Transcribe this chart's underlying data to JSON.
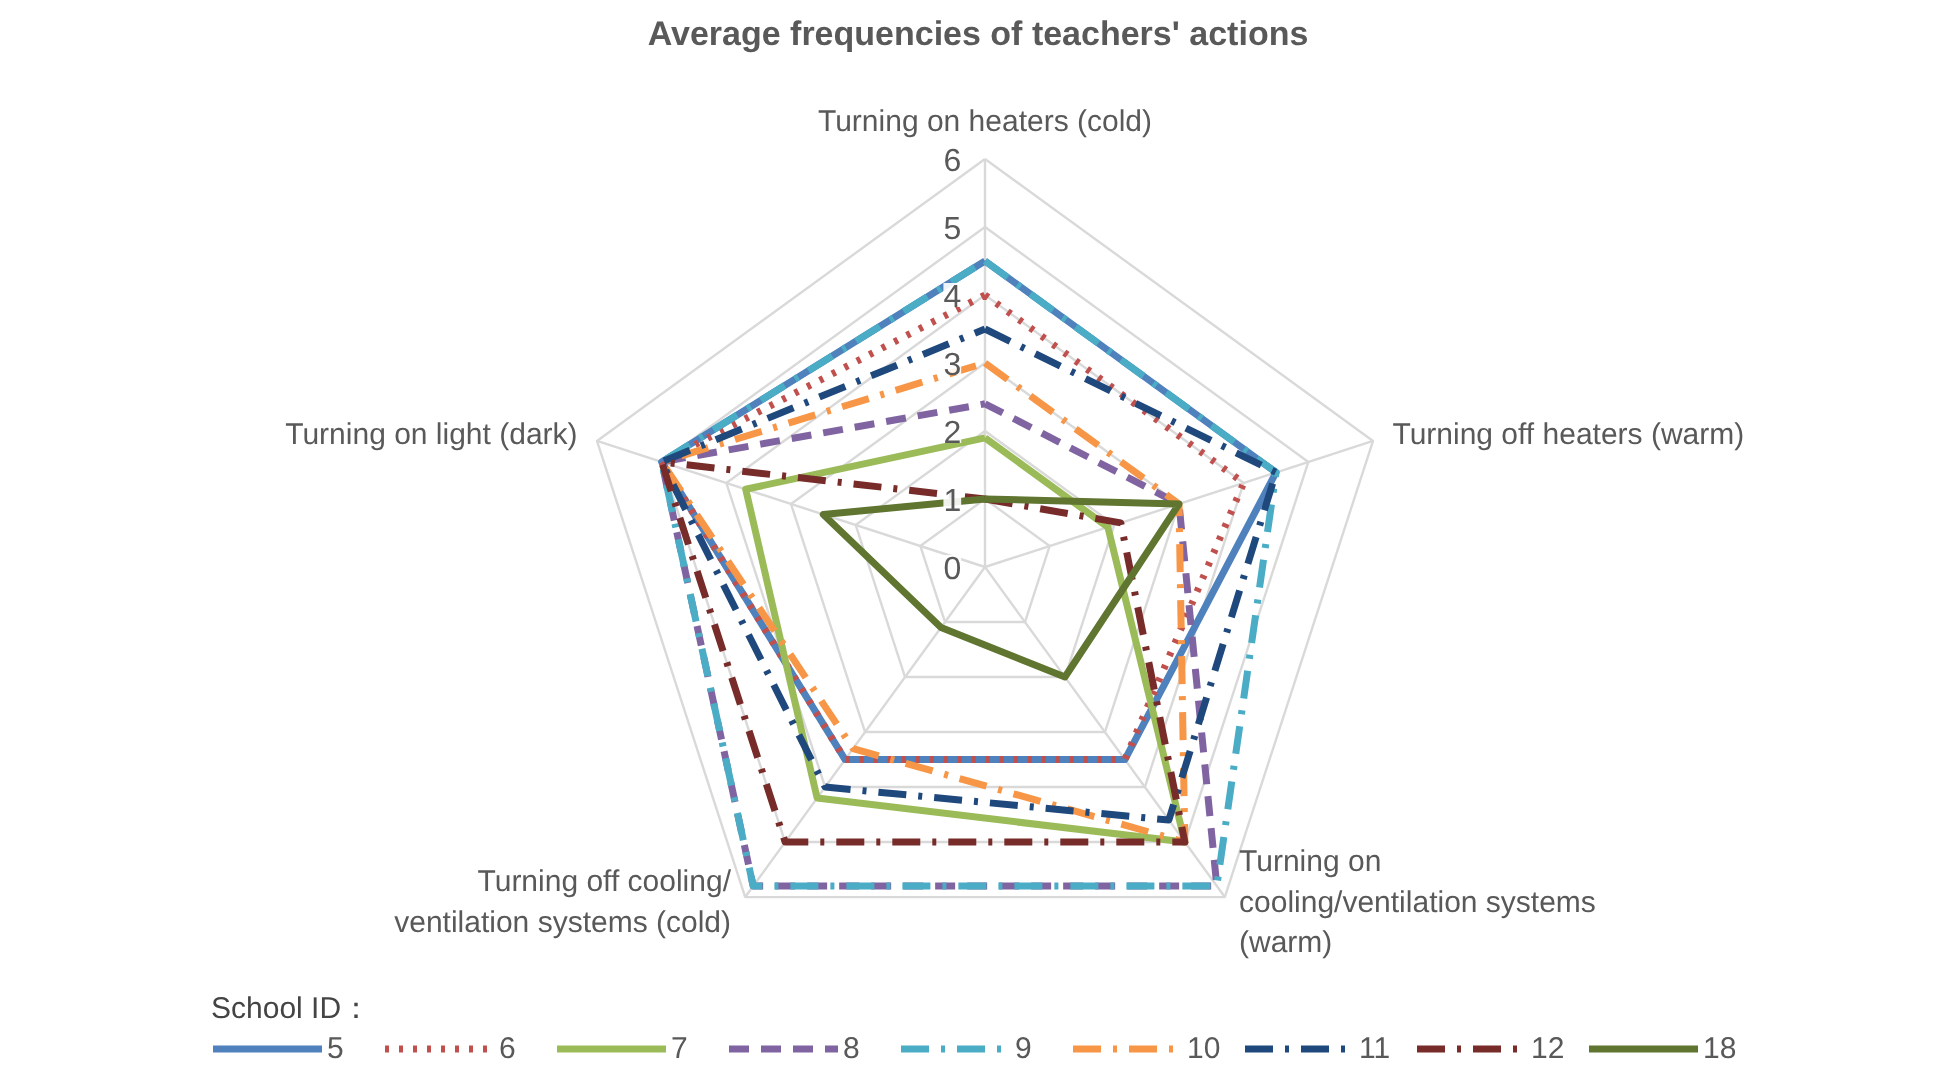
{
  "chart_data": {
    "type": "radar",
    "title": "Average frequencies of teachers' actions",
    "legend_title": "School ID：",
    "categories": [
      "Turning on heaters (cold)",
      "Turning off heaters (warm)",
      "Turning on\ncooling/ventilation systems\n(warm)",
      "Turning off cooling/\nventilation systems (cold)",
      "Turning on light (dark)"
    ],
    "ylim": [
      0,
      6
    ],
    "yticks": [
      0,
      1,
      2,
      3,
      4,
      5,
      6
    ],
    "grid": true,
    "legend": "bottom",
    "marker": "none",
    "series": [
      {
        "name": "5",
        "color": "#4f81bd",
        "line_style": "solid",
        "values": [
          4.5,
          4.5,
          3.5,
          3.5,
          5.0
        ]
      },
      {
        "name": "6",
        "color": "#c0504d",
        "line_style": "dotted",
        "values": [
          4.0,
          4.0,
          3.5,
          3.5,
          5.0
        ]
      },
      {
        "name": "7",
        "color": "#9bbb59",
        "line_style": "solid",
        "values": [
          1.9,
          1.9,
          5.0,
          4.2,
          3.7
        ]
      },
      {
        "name": "8",
        "color": "#8064a2",
        "line_style": "dashed",
        "values": [
          2.4,
          3.0,
          5.8,
          5.8,
          5.0
        ]
      },
      {
        "name": "9",
        "color": "#4bacc6",
        "line_style": "dashdot",
        "values": [
          4.5,
          4.5,
          5.8,
          5.8,
          5.0
        ]
      },
      {
        "name": "10",
        "color": "#f79646",
        "line_style": "dashdot",
        "values": [
          3.0,
          3.0,
          5.0,
          3.3,
          5.0
        ]
      },
      {
        "name": "11",
        "color": "#1f497d",
        "line_style": "dashdot",
        "values": [
          3.5,
          4.5,
          4.6,
          4.0,
          5.0
        ]
      },
      {
        "name": "12",
        "color": "#772c2a",
        "line_style": "dashdot",
        "values": [
          1.0,
          2.1,
          5.0,
          5.0,
          5.0
        ]
      },
      {
        "name": "18",
        "color": "#5f7530",
        "line_style": "solid",
        "values": [
          1.0,
          3.0,
          2.0,
          1.1,
          2.5
        ]
      }
    ]
  }
}
